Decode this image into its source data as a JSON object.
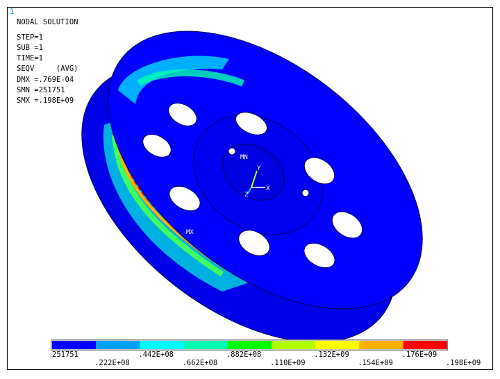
{
  "window_number": "1",
  "info": {
    "lines": [
      "NODAL SOLUTION",
      "STEP=1",
      "SUB =1",
      "TIME=1",
      "SEQV     (AVG)",
      "DMX =.769E-04",
      "SMN =251751",
      "SMX =.198E+09"
    ]
  },
  "model_labels": {
    "min": "MN",
    "max": "MX",
    "axis_x": "X",
    "axis_y": "Y",
    "axis_z": "Z"
  },
  "legend": {
    "colors": [
      "#0000ff",
      "#00a0ff",
      "#00ffff",
      "#00ffb0",
      "#00ff00",
      "#b0ff00",
      "#ffff00",
      "#ffb000",
      "#ff0000"
    ],
    "labels": [
      "251751",
      ".222E+08",
      ".442E+08",
      ".662E+08",
      ".882E+08",
      ".110E+09",
      ".132E+09",
      ".154E+09",
      ".176E+09",
      ".198E+09"
    ]
  }
}
